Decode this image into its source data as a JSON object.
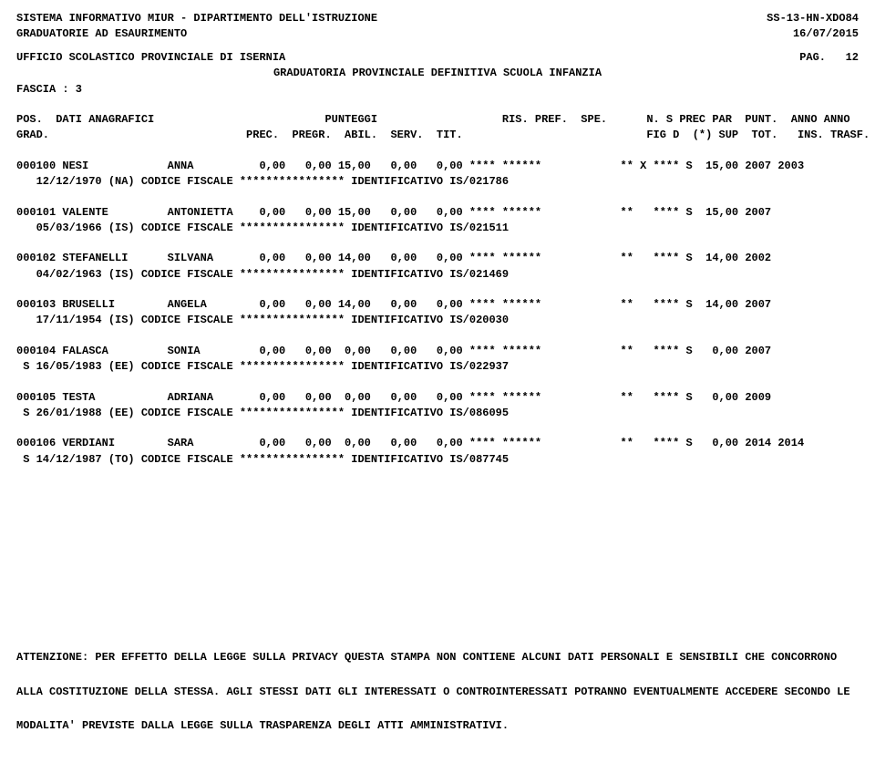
{
  "header": {
    "line1_left": "SISTEMA INFORMATIVO MIUR - DIPARTIMENTO DELL'ISTRUZIONE",
    "line1_right": "SS-13-HN-XDO84",
    "line2_left": "GRADUATORIE AD ESAURIMENTO",
    "line2_right": "16/07/2015",
    "line3_left": "UFFICIO SCOLASTICO PROVINCIALE DI ISERNIA",
    "line3_right": "PAG.   12",
    "title_center": "GRADUATORIA PROVINCIALE DEFINITIVA SCUOLA INFANZIA",
    "fascia": "FASCIA : 3"
  },
  "colhead": {
    "row1": "POS.  DATI ANAGRAFICI                          PUNTEGGI                   RIS. PREF.  SPE.      N. S PREC PAR  PUNT.  ANNO ANNO",
    "row2": "GRAD.                              PREC.  PREGR.  ABIL.  SERV.  TIT.                            FIG D  (*) SUP  TOT.   INS. TRASF."
  },
  "rows": [
    {
      "main": "000100 NESI            ANNA          0,00   0,00 15,00   0,00   0,00 **** ******            ** X **** S  15,00 2007 2003",
      "sub": "   12/12/1970 (NA) CODICE FISCALE **************** IDENTIFICATIVO IS/021786"
    },
    {
      "main": "000101 VALENTE         ANTONIETTA    0,00   0,00 15,00   0,00   0,00 **** ******            **   **** S  15,00 2007",
      "sub": "   05/03/1966 (IS) CODICE FISCALE **************** IDENTIFICATIVO IS/021511"
    },
    {
      "main": "000102 STEFANELLI      SILVANA       0,00   0,00 14,00   0,00   0,00 **** ******            **   **** S  14,00 2002",
      "sub": "   04/02/1963 (IS) CODICE FISCALE **************** IDENTIFICATIVO IS/021469"
    },
    {
      "main": "000103 BRUSELLI        ANGELA        0,00   0,00 14,00   0,00   0,00 **** ******            **   **** S  14,00 2007",
      "sub": "   17/11/1954 (IS) CODICE FISCALE **************** IDENTIFICATIVO IS/020030"
    },
    {
      "main": "000104 FALASCA         SONIA         0,00   0,00  0,00   0,00   0,00 **** ******            **   **** S   0,00 2007",
      "sub": " S 16/05/1983 (EE) CODICE FISCALE **************** IDENTIFICATIVO IS/022937"
    },
    {
      "main": "000105 TESTA           ADRIANA       0,00   0,00  0,00   0,00   0,00 **** ******            **   **** S   0,00 2009",
      "sub": " S 26/01/1988 (EE) CODICE FISCALE **************** IDENTIFICATIVO IS/086095"
    },
    {
      "main": "000106 VERDIANI        SARA          0,00   0,00  0,00   0,00   0,00 **** ******            **   **** S   0,00 2014 2014",
      "sub": " S 14/12/1987 (TO) CODICE FISCALE **************** IDENTIFICATIVO IS/087745"
    }
  ],
  "footer": {
    "p1": "ATTENZIONE: PER EFFETTO DELLA LEGGE SULLA PRIVACY QUESTA STAMPA NON CONTIENE ALCUNI DATI PERSONALI E SENSIBILI CHE CONCORRONO",
    "p2": "ALLA COSTITUZIONE DELLA STESSA. AGLI STESSI DATI GLI INTERESSATI O CONTROINTERESSATI POTRANNO EVENTUALMENTE ACCEDERE SECONDO LE",
    "p3": "MODALITA' PREVISTE DALLA LEGGE SULLA TRASPARENZA DEGLI ATTI AMMINISTRATIVI."
  }
}
